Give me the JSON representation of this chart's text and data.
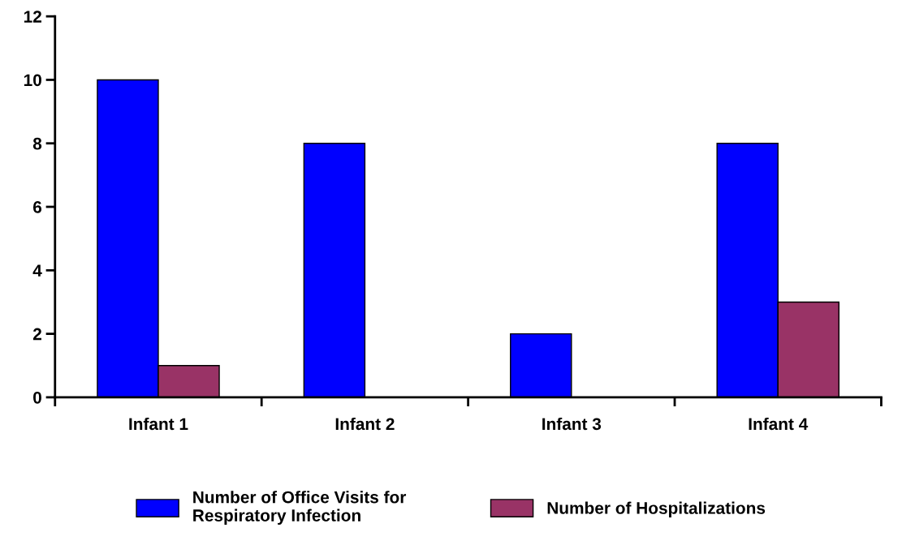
{
  "chart_data": {
    "type": "bar",
    "categories": [
      "Infant 1",
      "Infant 2",
      "Infant 3",
      "Infant 4"
    ],
    "series": [
      {
        "name": "Number of Office Visits for Respiratory Infection",
        "color": "#0000ff",
        "values": [
          10,
          8,
          2,
          8
        ]
      },
      {
        "name": "Number of Hospitalizations",
        "color": "#993366",
        "values": [
          1,
          0,
          0,
          3
        ]
      }
    ],
    "ylim": [
      0,
      12
    ],
    "yticks": [
      0,
      2,
      4,
      6,
      8,
      10,
      12
    ],
    "grid": false,
    "legend": "bottom"
  }
}
